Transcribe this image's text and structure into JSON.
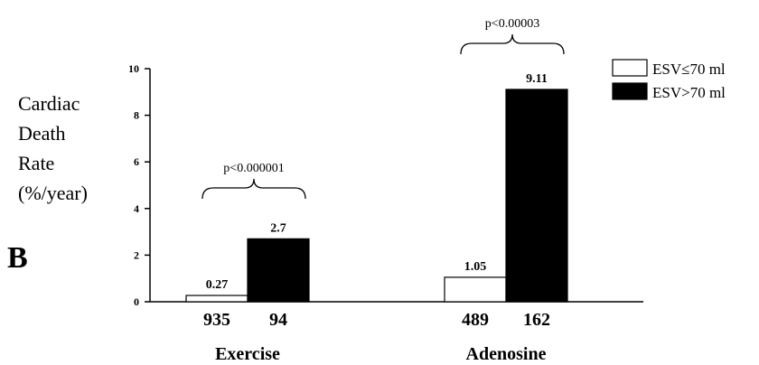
{
  "panel_label": "B",
  "ylabel_lines": [
    "Cardiac",
    "Death",
    "Rate",
    "(%/year)"
  ],
  "chart_data": {
    "type": "bar",
    "ylim": [
      0,
      10
    ],
    "yticks": [
      0,
      2,
      4,
      6,
      8,
      10
    ],
    "grid": false,
    "legend_position": "top-right",
    "groups": [
      {
        "name": "Exercise",
        "p_value": "p<0.000001",
        "bars": [
          {
            "series": "ESV≤70 ml",
            "value": 0.27,
            "label": "0.27",
            "n": "935"
          },
          {
            "series": "ESV>70 ml",
            "value": 2.7,
            "label": "2.7",
            "n": "94"
          }
        ]
      },
      {
        "name": "Adenosine",
        "p_value": "p<0.00003",
        "bars": [
          {
            "series": "ESV≤70 ml",
            "value": 1.05,
            "label": "1.05",
            "n": "489"
          },
          {
            "series": "ESV>70 ml",
            "value": 9.11,
            "label": "9.11",
            "n": "162"
          }
        ]
      }
    ],
    "series": [
      {
        "name": "ESV≤70 ml",
        "color": "#ffffff"
      },
      {
        "name": "ESV>70 ml",
        "color": "#000000"
      }
    ]
  }
}
